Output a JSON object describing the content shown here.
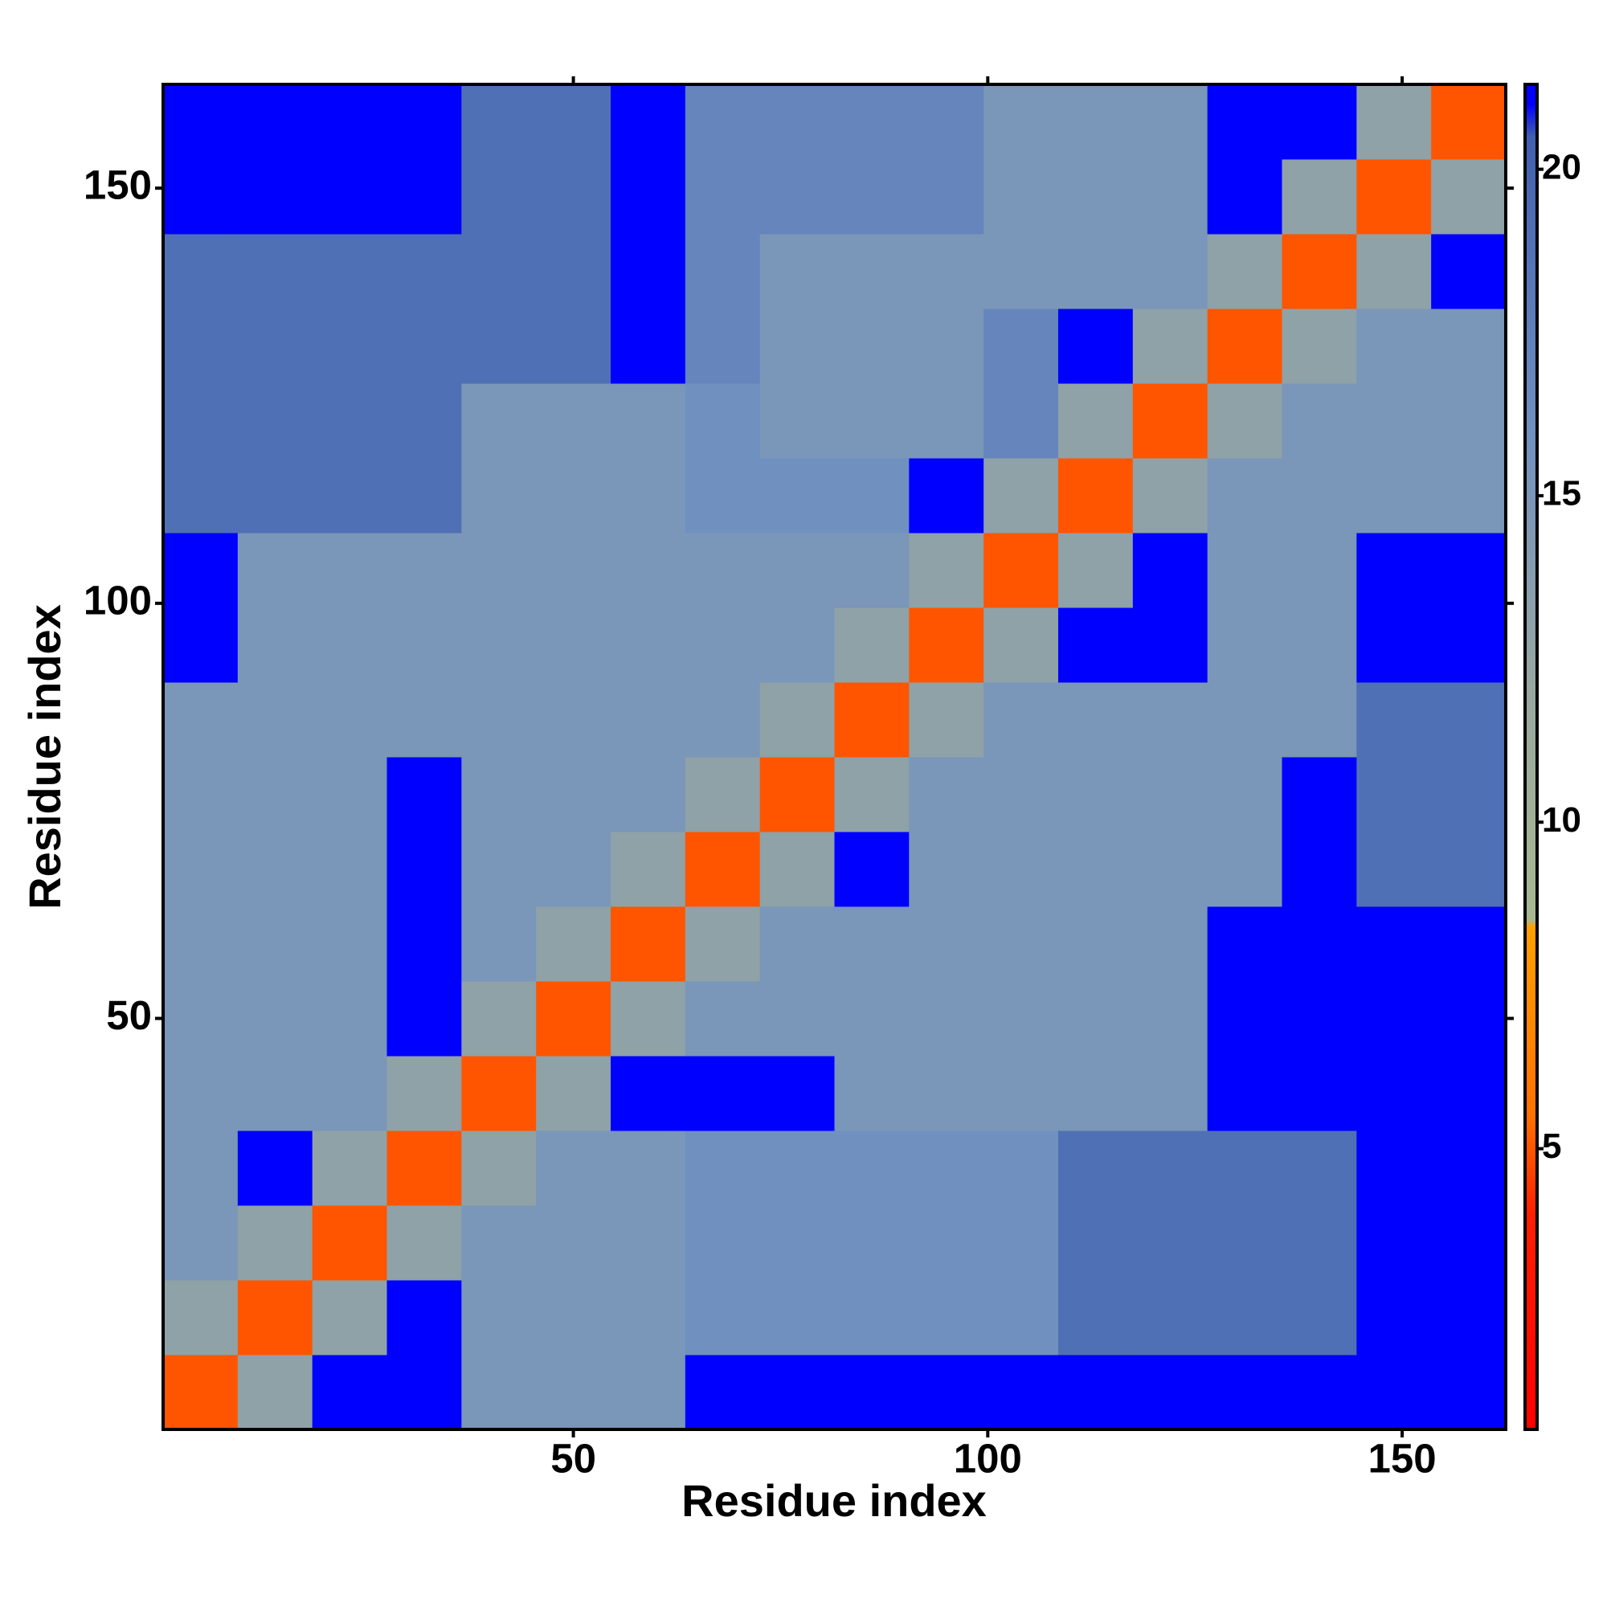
{
  "chart_data": {
    "type": "heatmap",
    "xlabel": "Residue index",
    "ylabel": "Residue index",
    "xbins": [
      0.5,
      9.5,
      18.5,
      27.5,
      36.5,
      45.5,
      54.5,
      63.5,
      72.5,
      81.5,
      90.5,
      99.5,
      108.5,
      117.5,
      126.5,
      135.5,
      144.5,
      153.5,
      162.5
    ],
    "ybins": [
      0.5,
      9.5,
      18.5,
      27.5,
      36.5,
      45.5,
      54.5,
      63.5,
      72.5,
      81.5,
      90.5,
      99.5,
      108.5,
      117.5,
      126.5,
      135.5,
      144.5,
      153.5,
      162.5
    ],
    "z": [
      [
        5,
        13,
        21,
        21,
        15,
        15,
        15,
        21,
        21,
        21,
        21,
        21,
        21,
        21,
        21,
        21,
        21,
        21
      ],
      [
        13,
        5,
        13,
        21,
        15,
        15,
        15,
        16,
        16,
        16,
        16,
        16,
        19,
        19,
        19,
        19,
        21,
        21
      ],
      [
        15,
        13,
        5,
        13,
        15,
        15,
        15,
        16,
        16,
        16,
        16,
        16,
        19,
        19,
        19,
        19,
        21,
        21
      ],
      [
        15,
        21,
        13,
        5,
        13,
        15,
        15,
        16,
        16,
        16,
        16,
        16,
        19,
        19,
        19,
        19,
        21,
        21
      ],
      [
        15,
        15,
        15,
        13,
        5,
        13,
        21,
        21,
        21,
        15,
        15,
        15,
        15,
        15,
        21,
        21,
        21,
        21
      ],
      [
        15,
        15,
        15,
        21,
        13,
        5,
        13,
        15,
        15,
        15,
        15,
        15,
        15,
        15,
        21,
        21,
        21,
        21
      ],
      [
        15,
        15,
        15,
        21,
        15,
        13,
        5,
        13,
        15,
        15,
        15,
        15,
        15,
        15,
        21,
        21,
        21,
        21
      ],
      [
        15,
        15,
        15,
        21,
        15,
        15,
        13,
        5,
        13,
        21,
        15,
        15,
        15,
        15,
        15,
        21,
        19,
        19
      ],
      [
        15,
        15,
        15,
        21,
        15,
        15,
        15,
        13,
        5,
        13,
        15,
        15,
        15,
        15,
        15,
        21,
        19,
        19
      ],
      [
        15,
        15,
        15,
        15,
        15,
        15,
        15,
        15,
        13,
        5,
        13,
        15,
        15,
        15,
        15,
        15,
        19,
        19
      ],
      [
        21,
        15,
        15,
        15,
        15,
        15,
        15,
        15,
        15,
        13,
        5,
        13,
        21,
        21,
        15,
        15,
        21,
        21
      ],
      [
        21,
        15,
        15,
        15,
        15,
        15,
        15,
        15,
        15,
        15,
        13,
        5,
        13,
        21,
        15,
        15,
        21,
        21
      ],
      [
        19,
        19,
        19,
        19,
        15,
        15,
        15,
        16,
        16,
        16,
        21,
        13,
        5,
        13,
        15,
        15,
        15,
        15
      ],
      [
        19,
        19,
        19,
        19,
        15,
        15,
        15,
        16,
        15,
        15,
        15,
        17,
        13,
        5,
        13,
        15,
        15,
        15
      ],
      [
        19,
        19,
        19,
        19,
        19,
        19,
        21,
        17,
        15,
        15,
        15,
        17,
        21,
        13,
        5,
        13,
        15,
        15
      ],
      [
        19,
        19,
        19,
        19,
        19,
        19,
        21,
        17,
        15,
        15,
        15,
        15,
        15,
        15,
        13,
        5,
        13,
        21
      ],
      [
        21,
        21,
        21,
        21,
        19,
        19,
        21,
        17,
        17,
        17,
        17,
        15,
        15,
        15,
        21,
        13,
        5,
        13
      ],
      [
        21,
        21,
        21,
        21,
        19,
        19,
        21,
        17,
        17,
        17,
        17,
        15,
        15,
        15,
        21,
        21,
        13,
        5
      ]
    ],
    "xlim": [
      0.5,
      162.5
    ],
    "ylim": [
      0.5,
      162.5
    ],
    "xticks": [
      50,
      100,
      150
    ],
    "yticks": [
      50,
      100,
      150
    ],
    "zlim": [
      0.7,
      21.3
    ],
    "zticks": [
      5,
      10,
      15,
      20
    ],
    "colorscale": [
      [
        0.7,
        "#ff0000"
      ],
      [
        4,
        "#ff2000"
      ],
      [
        5.5,
        "#ff7000"
      ],
      [
        8.4,
        "#ffa000"
      ],
      [
        8.5,
        "#a8b890"
      ],
      [
        12,
        "#98a8a0"
      ],
      [
        16,
        "#7090c0"
      ],
      [
        20.5,
        "#4060b0"
      ],
      [
        21,
        "#0000ff"
      ],
      [
        21.3,
        "#0000ff"
      ]
    ]
  }
}
